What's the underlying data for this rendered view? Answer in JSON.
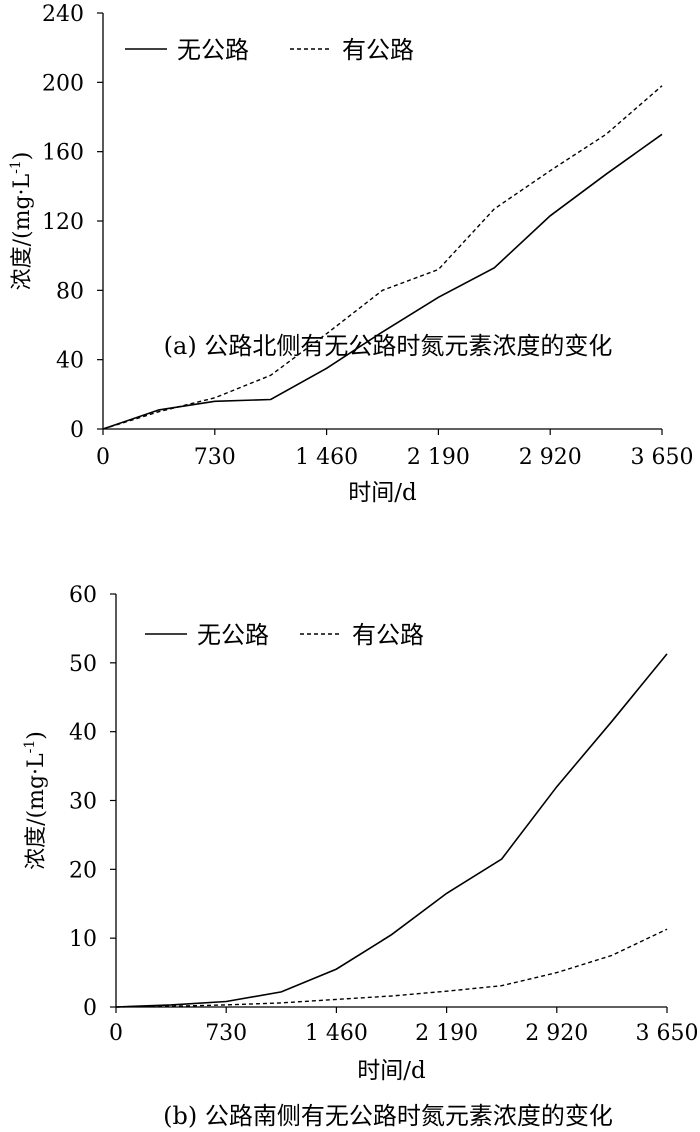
{
  "chart_data": [
    {
      "type": "line",
      "caption": "(a) 公路北侧有无公路时氮元素浓度的变化",
      "xlabel": "时间/d",
      "ylabel": "浓度/(mg·L",
      "ylabel_sup": "-1",
      "ylabel_close": ")",
      "xlim": [
        0,
        3650
      ],
      "ylim": [
        0,
        240
      ],
      "xticks": [
        0,
        730,
        1460,
        2190,
        2920,
        3650
      ],
      "xtick_labels": [
        "0",
        "730",
        "1 460",
        "2 190",
        "2 920",
        "3 650"
      ],
      "yticks": [
        0,
        40,
        80,
        120,
        160,
        200,
        240
      ],
      "ytick_labels": [
        "0",
        "40",
        "80",
        "120",
        "160",
        "200",
        "240"
      ],
      "grid": false,
      "legend_position": "top-left",
      "series": [
        {
          "name": "无公路",
          "style": "solid",
          "x": [
            0,
            365,
            730,
            1095,
            1460,
            1825,
            2190,
            2555,
            2920,
            3285,
            3650
          ],
          "y": [
            0,
            11,
            16,
            17,
            35,
            56,
            76,
            93,
            123,
            147,
            170
          ]
        },
        {
          "name": "有公路",
          "style": "dashed",
          "x": [
            0,
            365,
            730,
            1095,
            1460,
            1825,
            2190,
            2555,
            2920,
            3285,
            3650
          ],
          "y": [
            0,
            10,
            18,
            31,
            55,
            80,
            92,
            127,
            149,
            170,
            198
          ]
        }
      ]
    },
    {
      "type": "line",
      "caption": "(b) 公路南侧有无公路时氮元素浓度的变化",
      "xlabel": "时间/d",
      "ylabel": "浓度/(mg·L",
      "ylabel_sup": "-1",
      "ylabel_close": ")",
      "xlim": [
        0,
        3650
      ],
      "ylim": [
        0,
        60
      ],
      "xticks": [
        0,
        730,
        1460,
        2190,
        2920,
        3650
      ],
      "xtick_labels": [
        "0",
        "730",
        "1 460",
        "2 190",
        "2 920",
        "3 650"
      ],
      "yticks": [
        0,
        10,
        20,
        30,
        40,
        50,
        60
      ],
      "ytick_labels": [
        "0",
        "10",
        "20",
        "30",
        "40",
        "50",
        "60"
      ],
      "grid": false,
      "legend_position": "top-left",
      "series": [
        {
          "name": "无公路",
          "style": "solid",
          "x": [
            0,
            365,
            730,
            1095,
            1460,
            1825,
            2190,
            2555,
            2920,
            3285,
            3650
          ],
          "y": [
            0,
            0.3,
            0.8,
            2.2,
            5.5,
            10.5,
            16.5,
            21.5,
            32,
            41.5,
            51.3
          ]
        },
        {
          "name": "有公路",
          "style": "dashed",
          "x": [
            0,
            365,
            730,
            1095,
            1460,
            1825,
            2190,
            2555,
            2920,
            3285,
            3650
          ],
          "y": [
            0,
            0.1,
            0.3,
            0.6,
            1.1,
            1.6,
            2.3,
            3.1,
            5.0,
            7.5,
            11.3
          ]
        }
      ]
    }
  ]
}
